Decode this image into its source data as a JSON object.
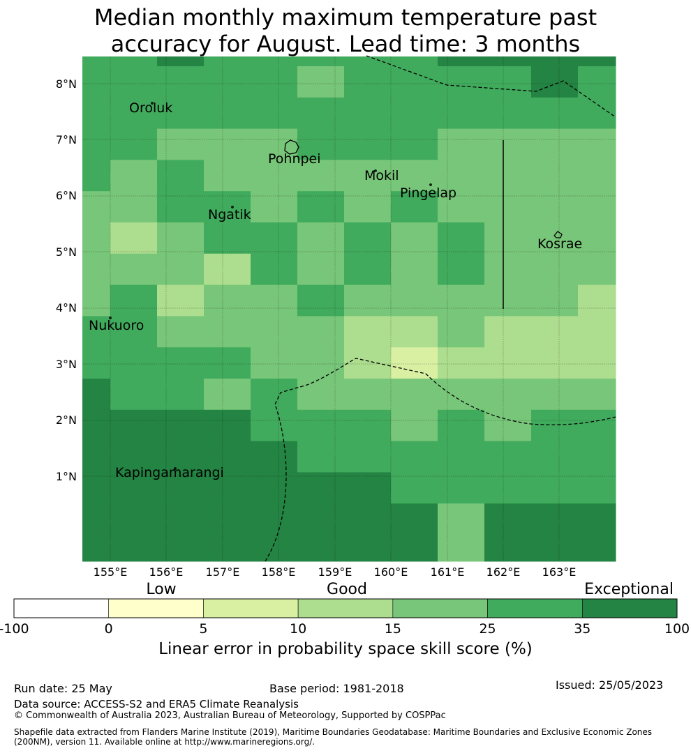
{
  "title_line1": "Median monthly maximum temperature past",
  "title_line2": "accuracy for August. Lead time: 3 months",
  "map": {
    "lon_range": [
      154.5,
      164.0
    ],
    "lat_range": [
      -0.25,
      8.5
    ],
    "lon_ticks": [
      "155°E",
      "156°E",
      "157°E",
      "158°E",
      "159°E",
      "160°E",
      "161°E",
      "162°E",
      "163°E"
    ],
    "lat_ticks": [
      "1°N",
      "2°N",
      "3°N",
      "4°N",
      "5°N",
      "6°N",
      "7°N",
      "8°N"
    ],
    "islands": [
      {
        "name": "Oroluk"
      },
      {
        "name": "Pohnpei"
      },
      {
        "name": "Mokil"
      },
      {
        "name": "Pingelap"
      },
      {
        "name": "Ngatik"
      },
      {
        "name": "Kosrae"
      },
      {
        "name": "Nukuoro"
      },
      {
        "name": "Kapingamarangi"
      }
    ],
    "grid_skill_classes": [
      [
        5,
        5,
        6,
        5,
        5,
        5,
        5,
        5,
        6,
        6,
        6,
        6,
        6
      ],
      [
        5,
        5,
        5,
        5,
        5,
        4,
        5,
        5,
        5,
        5,
        6,
        5,
        5
      ],
      [
        5,
        5,
        5,
        5,
        5,
        5,
        5,
        5,
        5,
        5,
        5,
        5,
        5
      ],
      [
        5,
        5,
        4,
        4,
        4,
        5,
        5,
        5,
        4,
        4,
        4,
        4,
        4
      ],
      [
        5,
        4,
        5,
        4,
        4,
        4,
        4,
        4,
        4,
        4,
        4,
        4,
        4
      ],
      [
        4,
        4,
        5,
        5,
        4,
        5,
        4,
        5,
        4,
        4,
        4,
        4,
        4
      ],
      [
        4,
        3,
        4,
        5,
        5,
        4,
        5,
        4,
        5,
        4,
        4,
        4,
        4
      ],
      [
        4,
        4,
        4,
        3,
        5,
        4,
        5,
        4,
        5,
        4,
        4,
        4,
        4
      ],
      [
        4,
        5,
        3,
        4,
        4,
        5,
        4,
        4,
        4,
        4,
        4,
        3,
        4
      ],
      [
        5,
        5,
        4,
        4,
        4,
        4,
        3,
        3,
        4,
        3,
        3,
        3,
        3
      ],
      [
        5,
        5,
        5,
        5,
        4,
        4,
        3,
        2,
        3,
        3,
        3,
        3,
        4
      ],
      [
        6,
        5,
        5,
        4,
        5,
        4,
        4,
        4,
        4,
        4,
        4,
        4,
        5
      ],
      [
        6,
        6,
        6,
        6,
        5,
        5,
        5,
        4,
        5,
        4,
        5,
        5,
        5
      ],
      [
        6,
        6,
        6,
        6,
        6,
        5,
        5,
        5,
        5,
        5,
        5,
        5,
        5
      ],
      [
        6,
        6,
        6,
        6,
        6,
        6,
        6,
        5,
        5,
        5,
        5,
        5,
        5
      ],
      [
        6,
        6,
        6,
        6,
        6,
        6,
        6,
        6,
        4,
        6,
        6,
        6,
        6
      ]
    ]
  },
  "colorbar": {
    "category_labels": [
      "Low",
      "Good",
      "Exceptional"
    ],
    "tick_labels": [
      "-100",
      "0",
      "5",
      "10",
      "15",
      "25",
      "35",
      "100"
    ],
    "colors": [
      "#ffffff",
      "#ffffcc",
      "#d9f0a3",
      "#addd8e",
      "#78c679",
      "#41ab5d",
      "#238443"
    ],
    "title": "Linear error in probability space skill score (%)"
  },
  "footer": {
    "run_date": "Run date: 25 May",
    "base_period": "Base period: 1981-2018",
    "issued": "Issued: 25/05/2023",
    "data_source": "Data source: ACCESS-S2 and ERA5 Climate Reanalysis",
    "copyright": "© Commonwealth of Australia 2023, Australian Bureau of Meteorology, Supported by COSPPac",
    "shapefile_line1": "Shapefile data extracted from Flanders Marine Institute (2019), Maritime Boundaries Geodatabase: Maritime Boundaries and Exclusive Economic Zones",
    "shapefile_line2": "(200NM), version 11. Available online at http://www.marineregions.org/."
  }
}
